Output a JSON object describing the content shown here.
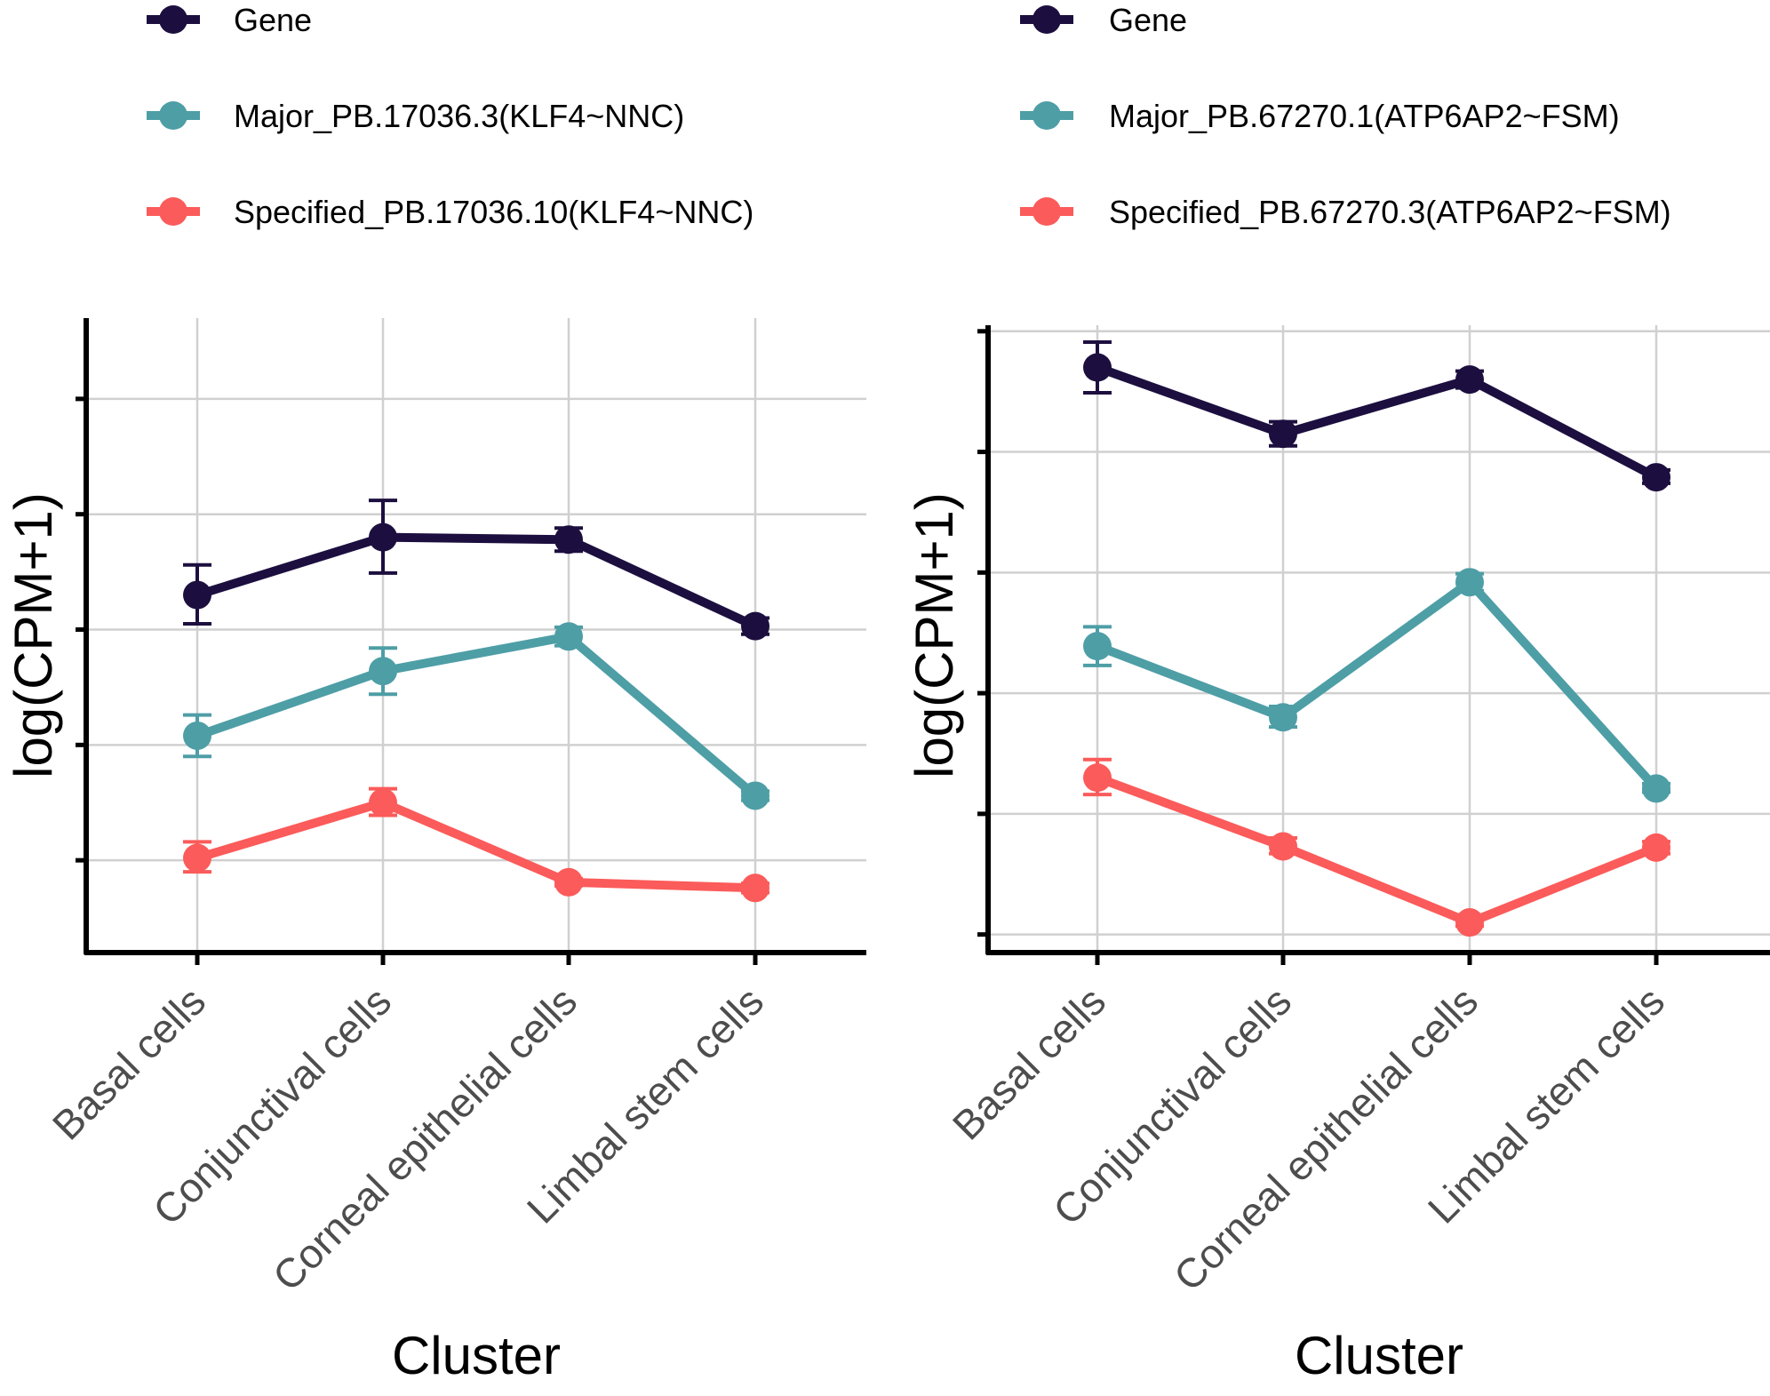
{
  "chart_data": [
    {
      "type": "line",
      "xlabel": "Cluster",
      "ylabel": "log(CPM+1)",
      "categories": [
        "Basal cells",
        "Conjunctival cells",
        "Corneal epithelial cells",
        "Limbal stem cells"
      ],
      "y_tick_labels_shown": false,
      "ylim": [
        0.2,
        5.7
      ],
      "y_ticks": [
        1,
        2,
        3,
        4,
        5
      ],
      "grid": true,
      "legend_position": "top",
      "series": [
        {
          "name": "Gene",
          "color": "#1c0f3f",
          "values": [
            3.3,
            3.8,
            3.78,
            3.03
          ],
          "err_low": [
            3.05,
            3.49,
            3.68,
            2.96
          ],
          "err_high": [
            3.56,
            4.12,
            3.88,
            3.1
          ]
        },
        {
          "name": "Major_PB.17036.3(KLF4~NNC)",
          "color": "#4e9ea6",
          "values": [
            2.08,
            2.64,
            2.94,
            1.56
          ],
          "err_low": [
            1.9,
            2.44,
            2.86,
            1.52
          ],
          "err_high": [
            2.26,
            2.84,
            3.02,
            1.6
          ]
        },
        {
          "name": "Specified_PB.17036.10(KLF4~NNC)",
          "color": "#fb5b5a",
          "values": [
            1.02,
            1.5,
            0.81,
            0.76
          ],
          "err_low": [
            0.9,
            1.39,
            0.78,
            0.72
          ],
          "err_high": [
            1.16,
            1.62,
            0.84,
            0.8
          ]
        }
      ]
    },
    {
      "type": "line",
      "xlabel": "Cluster",
      "ylabel": "log(CPM+1)",
      "categories": [
        "Basal cells",
        "Conjunctival cells",
        "Corneal epithelial cells",
        "Limbal stem cells"
      ],
      "y_tick_labels_shown": false,
      "ylim": [
        0.85,
        6.05
      ],
      "y_ticks": [
        1,
        2,
        3,
        4,
        5,
        6
      ],
      "grid": true,
      "legend_position": "top",
      "series": [
        {
          "name": "Gene",
          "color": "#1c0f3f",
          "values": [
            5.7,
            5.15,
            5.6,
            4.79
          ],
          "err_low": [
            5.49,
            5.05,
            5.53,
            4.74
          ],
          "err_high": [
            5.91,
            5.25,
            5.67,
            4.85
          ]
        },
        {
          "name": "Major_PB.67270.1(ATP6AP2~FSM)",
          "color": "#4e9ea6",
          "values": [
            3.39,
            2.8,
            3.92,
            2.21
          ],
          "err_low": [
            3.23,
            2.72,
            3.85,
            2.18
          ],
          "err_high": [
            3.55,
            2.89,
            3.99,
            2.25
          ]
        },
        {
          "name": "Specified_PB.67270.3(ATP6AP2~FSM)",
          "color": "#fb5b5a",
          "values": [
            2.3,
            1.73,
            1.1,
            1.72
          ],
          "err_low": [
            2.16,
            1.67,
            1.07,
            1.67
          ],
          "err_high": [
            2.45,
            1.8,
            1.14,
            1.77
          ]
        }
      ]
    }
  ]
}
